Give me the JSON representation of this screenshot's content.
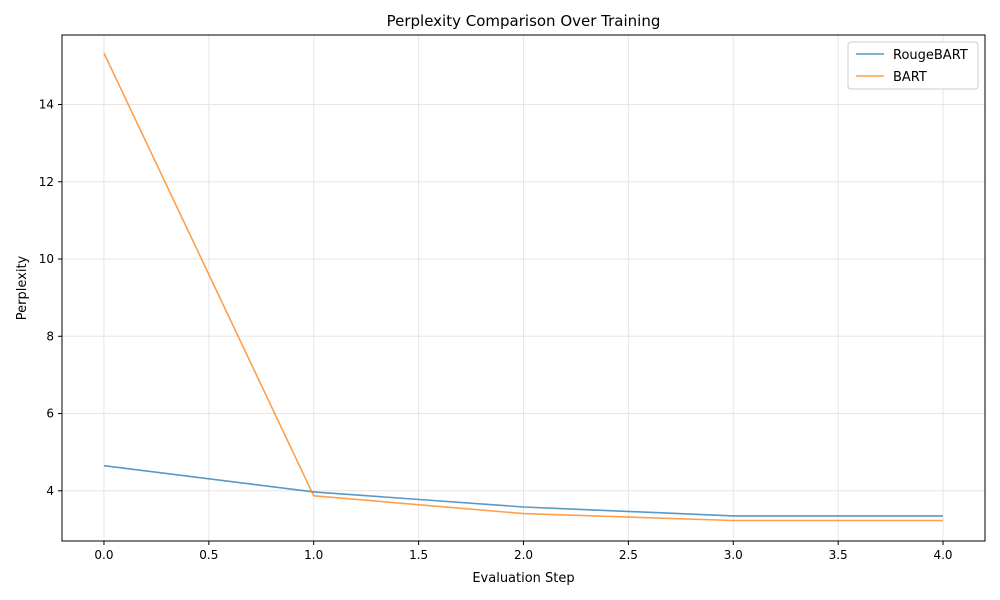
{
  "chart_data": {
    "type": "line",
    "title": "Perplexity Comparison Over Training",
    "xlabel": "Evaluation Step",
    "ylabel": "Perplexity",
    "xlim": [
      -0.2,
      4.2
    ],
    "ylim": [
      2.7,
      15.8
    ],
    "xticks": [
      0.0,
      0.5,
      1.0,
      1.5,
      2.0,
      2.5,
      3.0,
      3.5,
      4.0
    ],
    "xtick_labels": [
      "0.0",
      "0.5",
      "1.0",
      "1.5",
      "2.0",
      "2.5",
      "3.0",
      "3.5",
      "4.0"
    ],
    "yticks": [
      4,
      6,
      8,
      10,
      12,
      14
    ],
    "ytick_labels": [
      "4",
      "6",
      "8",
      "10",
      "12",
      "14"
    ],
    "grid": true,
    "legend_position": "top-right",
    "x": [
      0,
      1,
      2,
      3,
      4
    ],
    "series": [
      {
        "name": "RougeBART",
        "color": "#1f77b4",
        "values": [
          4.65,
          3.97,
          3.58,
          3.35,
          3.35
        ]
      },
      {
        "name": "BART",
        "color": "#ff7f0e",
        "values": [
          15.33,
          3.87,
          3.41,
          3.23,
          3.23
        ]
      }
    ]
  }
}
